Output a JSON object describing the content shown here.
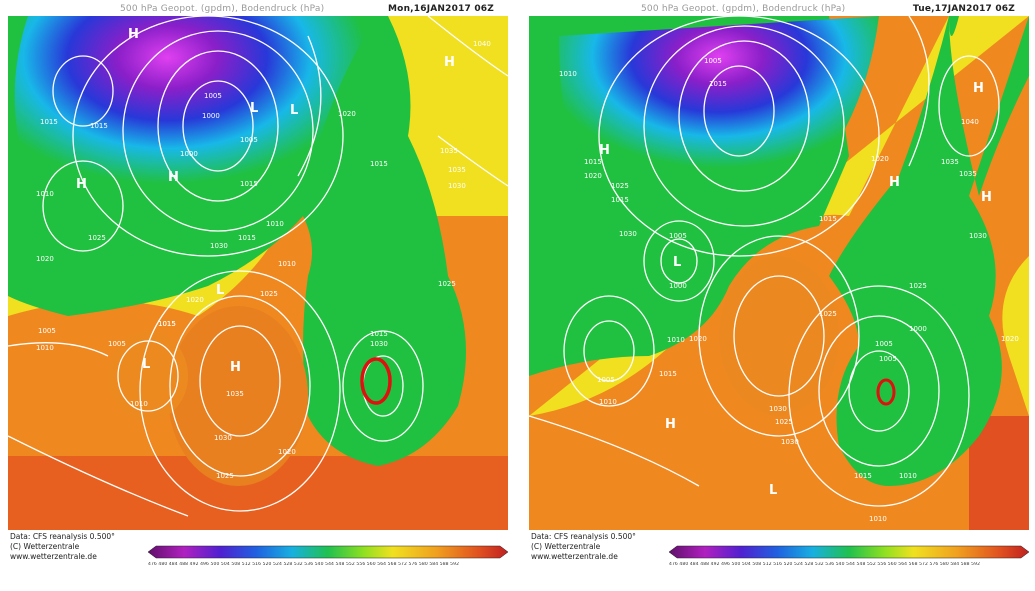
{
  "panels": [
    {
      "title": "500 hPa Geopot. (gpdm), Bodendruck (hPa)",
      "date": "Mon,16JAN2017 06Z",
      "pressure_labels": [
        "1015",
        "1015",
        "1010",
        "1020",
        "1005",
        "1000",
        "1005",
        "1000",
        "1015",
        "1010",
        "1025",
        "1015",
        "1030",
        "1005",
        "1015",
        "1020",
        "1025",
        "1035",
        "1030",
        "1025",
        "1020",
        "1010",
        "1015",
        "1010",
        "1005",
        "1015",
        "1030",
        "1025",
        "1020",
        "1015",
        "1010",
        "1040",
        "1035",
        "1035",
        "1030"
      ],
      "centers": [
        "H",
        "H",
        "L",
        "H",
        "H",
        "L",
        "L",
        "H",
        "L"
      ],
      "circle_label": "Red circle"
    },
    {
      "title": "500 hPa Geopot. (gpdm), Bodendruck (hPa)",
      "date": "Tue,17JAN2017 06Z",
      "pressure_labels": [
        "1010",
        "1015",
        "1020",
        "1025",
        "1030",
        "1015",
        "1005",
        "1000",
        "1005",
        "1010",
        "1015",
        "1010",
        "1005",
        "1015",
        "1030",
        "1025",
        "1020",
        "1035",
        "1040",
        "1035",
        "1030",
        "1025",
        "1020",
        "1015",
        "1010",
        "1005",
        "1000",
        "1005",
        "1010",
        "1015",
        "1020",
        "1025",
        "1030"
      ],
      "centers": [
        "H",
        "H",
        "L",
        "H",
        "H",
        "H",
        "L"
      ],
      "circle_label": "Red circle"
    }
  ],
  "footer": {
    "line1": "Data: CFS reanalysis 0.500°",
    "line2": "(C) Wetterzentrale",
    "line3": "www.wetterzentrale.de"
  },
  "scale_ticks": "476 480 484 488 492 496 500 504 508 512 516 520 524 528 532 536 540 544 548 552 556 560 564 568 572 576 580 584 588 592",
  "colors": {
    "violet": "#8a1fc9",
    "magenta": "#e040f0",
    "blue": "#2838d8",
    "cyan": "#18b8e8",
    "green": "#20c040",
    "yellow": "#f0e020",
    "orange": "#f09020",
    "red_orange": "#e05020",
    "circle": "#e01010"
  }
}
